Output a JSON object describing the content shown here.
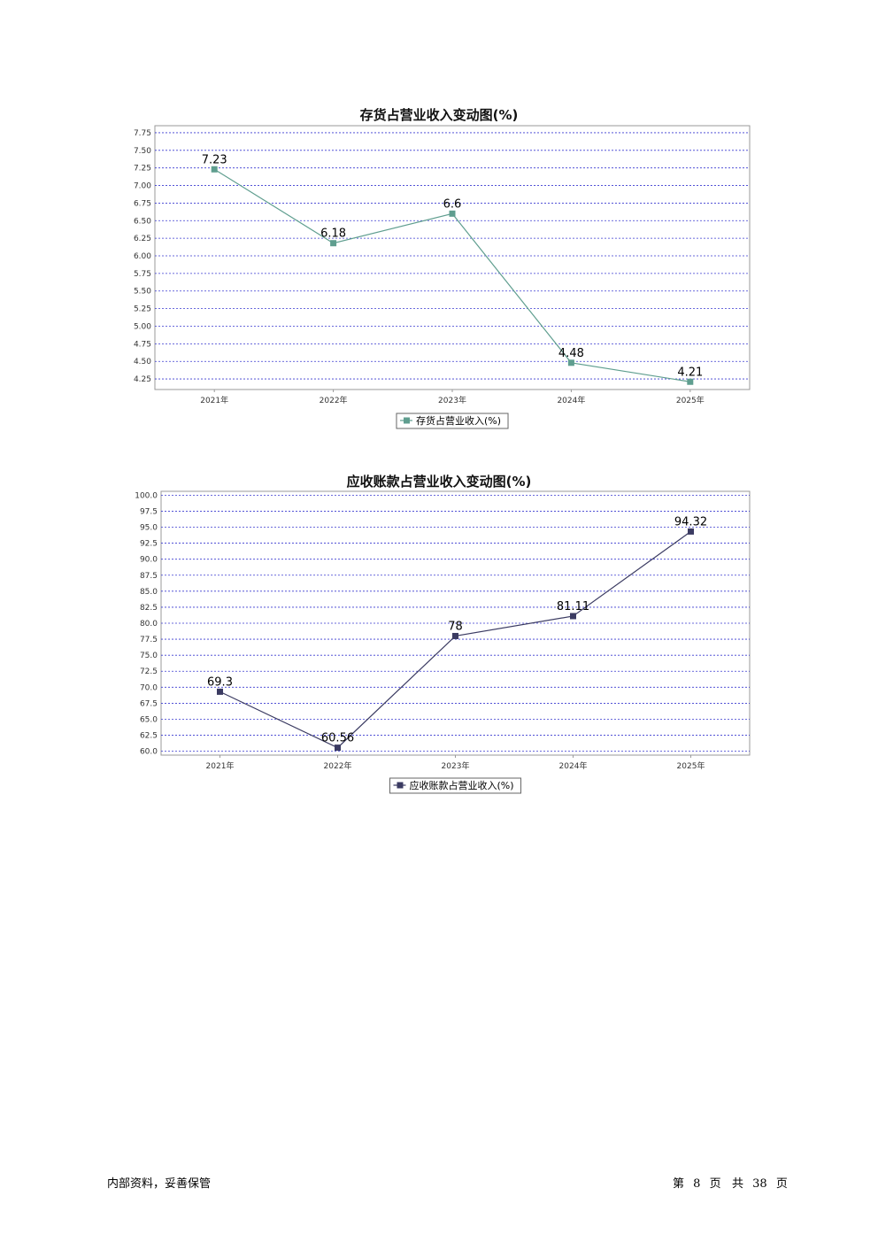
{
  "chart_data": [
    {
      "type": "line",
      "title": "存货占营业收入变动图(%)",
      "categories": [
        "2021年",
        "2022年",
        "2023年",
        "2024年",
        "2025年"
      ],
      "series": [
        {
          "name": "存货占营业收入(%)",
          "values": [
            7.23,
            6.18,
            6.6,
            4.48,
            4.21
          ],
          "color": "#5f9e8f"
        }
      ],
      "value_labels": [
        "7.23",
        "6.18",
        "6.6",
        "4.48",
        "4.21"
      ],
      "ylim": [
        4.1,
        7.85
      ],
      "yticks": [
        4.25,
        4.5,
        4.75,
        5.0,
        5.25,
        5.5,
        5.75,
        6.0,
        6.25,
        6.5,
        6.75,
        7.0,
        7.25,
        7.5,
        7.75
      ],
      "ytick_labels": [
        "4.25",
        "4.50",
        "4.75",
        "5.00",
        "5.25",
        "5.50",
        "5.75",
        "6.00",
        "6.25",
        "6.50",
        "6.75",
        "7.00",
        "7.25",
        "7.50",
        "7.75"
      ],
      "grid": true,
      "grid_color": "#3a3ad0",
      "legend": "bottom-center"
    },
    {
      "type": "line",
      "title": "应收账款占营业收入变动图(%)",
      "categories": [
        "2021年",
        "2022年",
        "2023年",
        "2024年",
        "2025年"
      ],
      "series": [
        {
          "name": "应收账款占营业收入(%)",
          "values": [
            69.3,
            60.56,
            78,
            81.11,
            94.32
          ],
          "color": "#3b3b62"
        }
      ],
      "value_labels": [
        "69.3",
        "60.56",
        "78",
        "81.11",
        "94.32"
      ],
      "ylim": [
        59.4,
        100.6
      ],
      "yticks": [
        60.0,
        62.5,
        65.0,
        67.5,
        70.0,
        72.5,
        75.0,
        77.5,
        80.0,
        82.5,
        85.0,
        87.5,
        90.0,
        92.5,
        95.0,
        97.5,
        100.0
      ],
      "ytick_labels": [
        "60.0",
        "62.5",
        "65.0",
        "67.5",
        "70.0",
        "72.5",
        "75.0",
        "77.5",
        "80.0",
        "82.5",
        "85.0",
        "87.5",
        "90.0",
        "92.5",
        "95.0",
        "97.5",
        "100.0"
      ],
      "grid": true,
      "grid_color": "#3a3ad0",
      "legend": "bottom-center"
    }
  ],
  "footer": {
    "left": "内部资料，妥善保管",
    "page_prefix": "第",
    "page_current": "8",
    "page_mid": "页   共",
    "page_total": "38",
    "page_suffix": "页"
  }
}
